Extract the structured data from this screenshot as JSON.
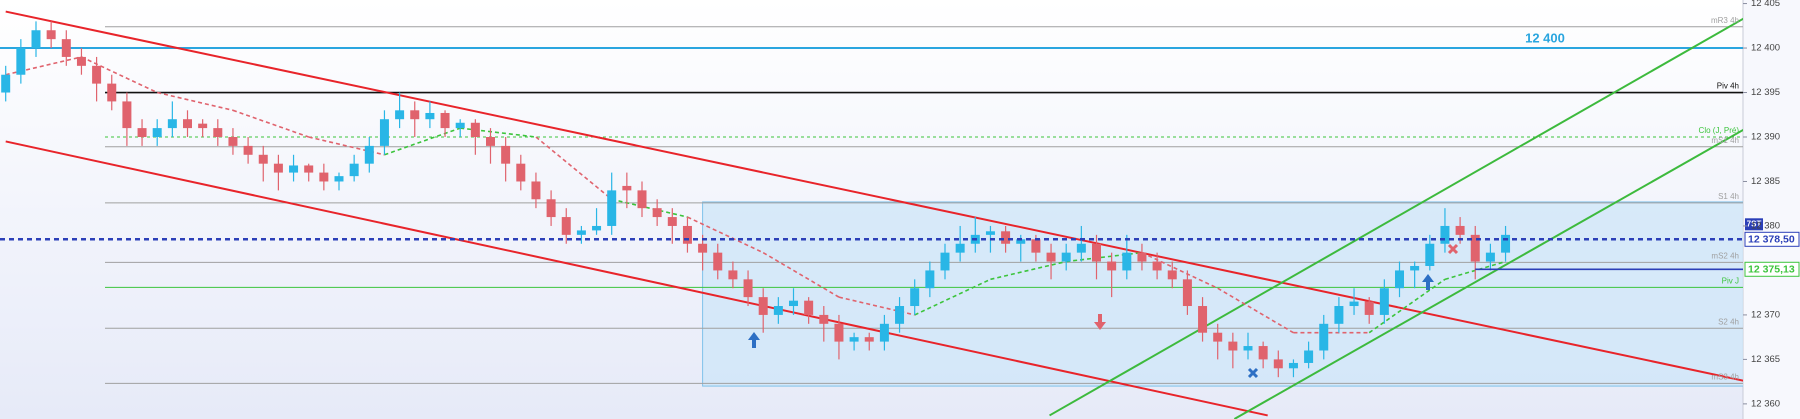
{
  "chart_data": {
    "type": "candlestick",
    "ylim": [
      12358.3,
      12405.4
    ],
    "yticks": [
      {
        "value": 12360,
        "label": "12 360"
      },
      {
        "value": 12365,
        "label": "12 365"
      },
      {
        "value": 12370,
        "label": "12 370"
      },
      {
        "value": 12380,
        "label": "12 380"
      },
      {
        "value": 12385,
        "label": "12 385"
      },
      {
        "value": 12390,
        "label": "12 390"
      },
      {
        "value": 12395,
        "label": "12 395"
      },
      {
        "value": 12400,
        "label": "12 400"
      },
      {
        "value": 12405,
        "label": "12 405"
      }
    ],
    "up_color": "#29b6e6",
    "down_color": "#e0636d",
    "ohlc": [
      [
        12395,
        12398,
        12394,
        12397
      ],
      [
        12397,
        12401,
        12396,
        12400
      ],
      [
        12400,
        12403,
        12399,
        12402
      ],
      [
        12402,
        12403,
        12400,
        12401
      ],
      [
        12401,
        12402,
        12398,
        12399
      ],
      [
        12399,
        12400,
        12397,
        12398
      ],
      [
        12398,
        12399,
        12394,
        12396
      ],
      [
        12396,
        12397,
        12393,
        12394
      ],
      [
        12394,
        12395,
        12389,
        12391
      ],
      [
        12391,
        12392,
        12389,
        12390
      ],
      [
        12390,
        12392,
        12389,
        12391
      ],
      [
        12391,
        12394,
        12390,
        12392
      ],
      [
        12392,
        12393,
        12390,
        12391
      ],
      [
        12391.5,
        12392,
        12390,
        12391
      ],
      [
        12391,
        12392,
        12389,
        12390
      ],
      [
        12390,
        12391,
        12388,
        12389
      ],
      [
        12389,
        12390,
        12387,
        12388
      ],
      [
        12388,
        12389,
        12385,
        12387
      ],
      [
        12387,
        12388,
        12384,
        12386
      ],
      [
        12386,
        12388,
        12385,
        12386.8
      ],
      [
        12386.8,
        12387,
        12385,
        12386
      ],
      [
        12386,
        12387,
        12384,
        12385
      ],
      [
        12385,
        12386,
        12384,
        12385.6
      ],
      [
        12385.6,
        12388,
        12385,
        12387
      ],
      [
        12387,
        12390,
        12386,
        12389
      ],
      [
        12389,
        12393,
        12388,
        12392
      ],
      [
        12392,
        12395,
        12391,
        12393
      ],
      [
        12393,
        12394,
        12390,
        12392
      ],
      [
        12392,
        12394,
        12391,
        12392.7
      ],
      [
        12392.7,
        12393,
        12390,
        12391
      ],
      [
        12391,
        12392,
        12390,
        12391.6
      ],
      [
        12391.6,
        12392,
        12388,
        12390
      ],
      [
        12390,
        12391,
        12387,
        12389
      ],
      [
        12389,
        12390,
        12385,
        12387
      ],
      [
        12387,
        12388,
        12384,
        12385
      ],
      [
        12385,
        12386,
        12382,
        12383
      ],
      [
        12383,
        12384,
        12380,
        12381
      ],
      [
        12381,
        12382,
        12378,
        12379
      ],
      [
        12379,
        12380,
        12378,
        12379.5
      ],
      [
        12379.5,
        12382,
        12379,
        12380
      ],
      [
        12380,
        12386,
        12379,
        12384
      ],
      [
        12384.5,
        12386,
        12382,
        12384
      ],
      [
        12384,
        12385,
        12381,
        12382
      ],
      [
        12382,
        12383,
        12380,
        12381
      ],
      [
        12381,
        12382,
        12378,
        12380
      ],
      [
        12380,
        12381,
        12377,
        12378
      ],
      [
        12378,
        12379,
        12375,
        12377
      ],
      [
        12377,
        12378,
        12374,
        12375
      ],
      [
        12375,
        12376,
        12373,
        12374
      ],
      [
        12374,
        12375,
        12371,
        12372
      ],
      [
        12372,
        12373,
        12368,
        12370
      ],
      [
        12370,
        12372,
        12369,
        12371
      ],
      [
        12371,
        12373,
        12370,
        12371.6
      ],
      [
        12371.6,
        12372,
        12369,
        12370
      ],
      [
        12370,
        12371,
        12367,
        12369
      ],
      [
        12369,
        12370,
        12365,
        12367
      ],
      [
        12367,
        12368,
        12366,
        12367.5
      ],
      [
        12367.5,
        12368,
        12366,
        12367
      ],
      [
        12367,
        12370,
        12366,
        12369
      ],
      [
        12369,
        12372,
        12368,
        12371
      ],
      [
        12371,
        12374,
        12370,
        12373
      ],
      [
        12373,
        12376,
        12372,
        12375
      ],
      [
        12375,
        12378,
        12374,
        12377
      ],
      [
        12377,
        12380,
        12376,
        12378
      ],
      [
        12378,
        12381,
        12377,
        12379
      ],
      [
        12379,
        12380,
        12377,
        12379.4
      ],
      [
        12379.4,
        12380,
        12377,
        12378
      ],
      [
        12378,
        12379,
        12376,
        12378.5
      ],
      [
        12378.5,
        12379,
        12376,
        12377
      ],
      [
        12377,
        12378,
        12374,
        12376
      ],
      [
        12376,
        12378,
        12375,
        12377
      ],
      [
        12377,
        12380,
        12376,
        12378
      ],
      [
        12378,
        12379,
        12374,
        12376
      ],
      [
        12376,
        12377,
        12372,
        12375
      ],
      [
        12375,
        12379,
        12374,
        12377
      ],
      [
        12377,
        12378,
        12375,
        12376
      ],
      [
        12376,
        12377,
        12374,
        12375
      ],
      [
        12375,
        12376,
        12373,
        12374
      ],
      [
        12374,
        12375,
        12370,
        12371
      ],
      [
        12371,
        12372,
        12367,
        12368
      ],
      [
        12368,
        12369,
        12365,
        12367
      ],
      [
        12367,
        12368,
        12364,
        12366
      ],
      [
        12366,
        12368,
        12365,
        12366.5
      ],
      [
        12366.5,
        12367,
        12364,
        12365
      ],
      [
        12365,
        12366,
        12363,
        12364
      ],
      [
        12364,
        12365,
        12363,
        12364.6
      ],
      [
        12364.6,
        12367,
        12364,
        12366
      ],
      [
        12366,
        12370,
        12365,
        12369
      ],
      [
        12369,
        12372,
        12368,
        12371
      ],
      [
        12371,
        12373,
        12370,
        12371.5
      ],
      [
        12371.5,
        12372,
        12369,
        12370
      ],
      [
        12370,
        12374,
        12369,
        12373
      ],
      [
        12373,
        12376,
        12372,
        12375
      ],
      [
        12375,
        12376,
        12373,
        12375.5
      ],
      [
        12375.5,
        12379,
        12375,
        12378
      ],
      [
        12378,
        12382,
        12377,
        12380
      ],
      [
        12380,
        12381,
        12378,
        12379
      ],
      [
        12379,
        12380,
        12374,
        12376
      ],
      [
        12376,
        12378,
        12375,
        12377
      ],
      [
        12377,
        12380,
        12376,
        12379
      ]
    ],
    "ma": {
      "x": [
        0,
        5,
        10,
        15,
        20,
        25,
        30,
        35,
        40,
        45,
        50,
        55,
        60,
        65,
        70,
        75,
        80,
        85,
        90,
        95,
        99
      ],
      "values": [
        12397,
        12399,
        12395,
        12393,
        12390,
        12388,
        12391,
        12390,
        12383,
        12381,
        12377,
        12372,
        12370,
        12374,
        12376,
        12377,
        12373,
        12368,
        12368,
        12374,
        12376
      ]
    },
    "zone": {
      "from": 46,
      "to": 115,
      "top": 12382.7,
      "bottom": 12362,
      "color": "#cde6f8"
    },
    "trendlines": [
      {
        "color": "#e8242a",
        "points": [
          [
            0,
            12404.1
          ],
          [
            115,
            12362.5
          ]
        ]
      },
      {
        "color": "#e8242a",
        "points": [
          [
            0,
            12389.5
          ],
          [
            83.3,
            12358.7
          ]
        ]
      },
      {
        "color": "#3dba3d",
        "points": [
          [
            68.9,
            12358.7
          ],
          [
            115,
            12403.6
          ]
        ]
      },
      {
        "color": "#3dba3d",
        "points": [
          [
            81.1,
            12358.3
          ],
          [
            115,
            12391.1
          ]
        ]
      }
    ],
    "levels": [
      {
        "value": 12402.4,
        "label": "mR3 4h",
        "color": "#a0a0a0"
      },
      {
        "value": 12400,
        "label": "12 400",
        "color": "#2aa6df"
      },
      {
        "value": 12395,
        "label": "Piv 4h",
        "color": "#111111"
      },
      {
        "value": 12390,
        "label": "Clo (J, Pré)",
        "color": "#3cc43c",
        "dashed": true
      },
      {
        "value": 12388.9,
        "label": "mS1 4h",
        "color": "#a0a0a0"
      },
      {
        "value": 12382.6,
        "label": "S1 4h",
        "color": "#a0a0a0"
      },
      {
        "value": 12375.9,
        "label": "mS2 4h",
        "color": "#a0a0a0"
      },
      {
        "value": 12373.1,
        "label": "Piv J",
        "color": "#3cc43c"
      },
      {
        "value": 12368.5,
        "label": "S2 4h",
        "color": "#a0a0a0"
      },
      {
        "value": 12362.3,
        "label": "mS3 4h",
        "color": "#a0a0a0"
      }
    ],
    "price_tags": [
      {
        "value": 12378.5,
        "label": "12 378,50",
        "tag": "7ST",
        "color": "#2b3fb8"
      },
      {
        "value": 12375.13,
        "label": "12 375,13",
        "color": "#3cc43c"
      }
    ]
  }
}
